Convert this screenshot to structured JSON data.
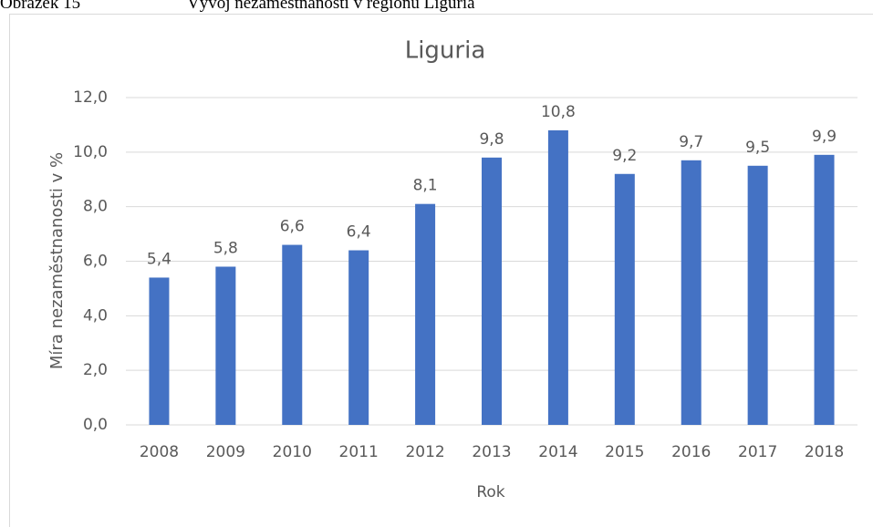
{
  "caption": {
    "label": "Obrázek 15",
    "text": "Vývoj nezaměstnanosti v regionu Liguria"
  },
  "chart_data": {
    "type": "bar",
    "title": "Liguria",
    "x_label": "Rok",
    "y_label": "Míra nezaměstnanosti v %",
    "categories": [
      "2008",
      "2009",
      "2010",
      "2011",
      "2012",
      "2013",
      "2014",
      "2015",
      "2016",
      "2017",
      "2018"
    ],
    "values": [
      5.4,
      5.8,
      6.6,
      6.4,
      8.1,
      9.8,
      10.8,
      9.2,
      9.7,
      9.5,
      9.9
    ],
    "value_labels": [
      "5,4",
      "5,8",
      "6,6",
      "6,4",
      "8,1",
      "9,8",
      "10,8",
      "9,2",
      "9,7",
      "9,5",
      "9,9"
    ],
    "color": "#4472c4",
    "ylim": [
      0,
      12
    ],
    "yticks": [
      {
        "value": 0,
        "label": "0,0"
      },
      {
        "value": 2,
        "label": "2,0"
      },
      {
        "value": 4,
        "label": "4,0"
      },
      {
        "value": 6,
        "label": "6,0"
      },
      {
        "value": 8,
        "label": "8,0"
      },
      {
        "value": 10,
        "label": "10,0"
      },
      {
        "value": 12,
        "label": "12,0"
      }
    ],
    "grid": true
  }
}
